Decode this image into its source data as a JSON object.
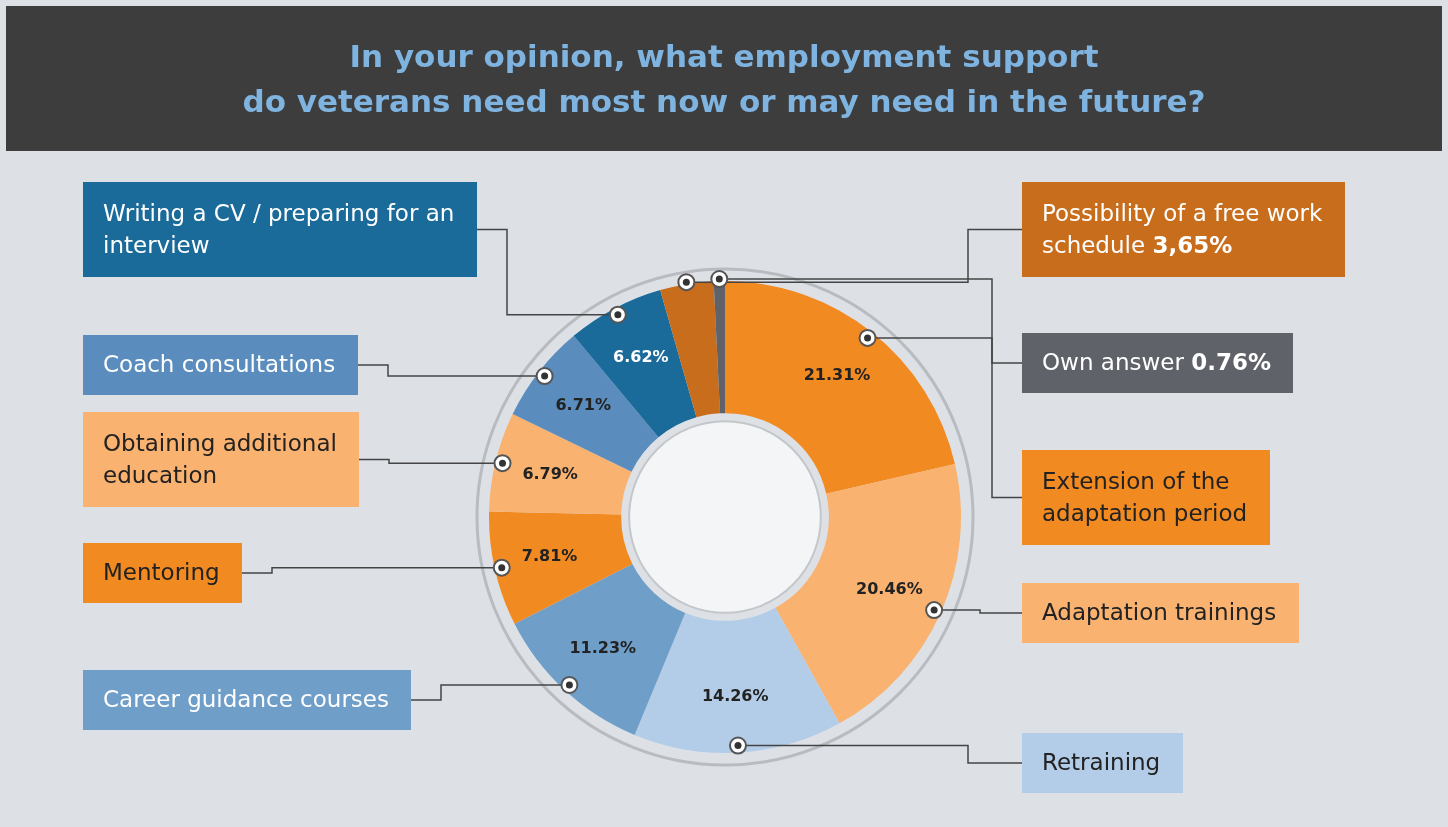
{
  "chart_data": {
    "type": "donut",
    "title": "In your opinion, what employment support\ndo veterans need most now or may need in the future?",
    "categories": [
      "Extension of the adaptation period",
      "Adaptation trainings",
      "Retraining",
      "Career guidance courses",
      "Mentoring",
      "Obtaining additional education",
      "Coach consultations",
      "Writing a CV / preparing for an interview",
      "Possibility of a free work schedule",
      "Own answer"
    ],
    "values": [
      21.31,
      20.46,
      14.26,
      11.23,
      7.81,
      6.79,
      6.71,
      6.62,
      3.65,
      0.76
    ],
    "colors": [
      "#f28a22",
      "#f9b26f",
      "#b3cde8",
      "#6f9ec9",
      "#f28a22",
      "#f9b26f",
      "#5a8dbd",
      "#1a6a9a",
      "#c86d1c",
      "#5f6268"
    ],
    "value_labels": [
      "21.31%",
      "20.46%",
      "14.26%",
      "11.23%",
      "7.81%",
      "6.79%",
      "6.71%",
      "6.62%",
      "3,65%",
      "0.76%"
    ]
  }
}
